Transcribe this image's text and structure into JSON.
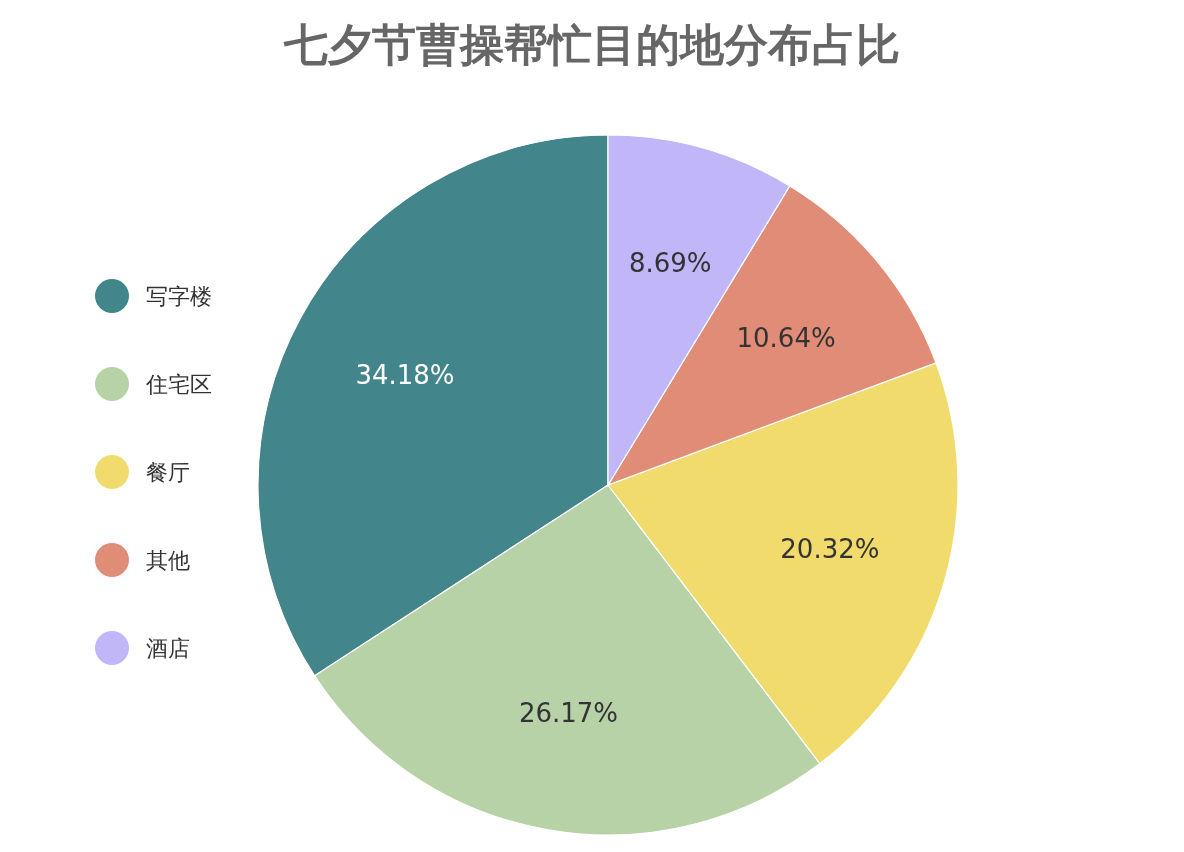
{
  "chart_data": {
    "type": "pie",
    "title": "七夕节曹操帮忙目的地分布占比",
    "categories": [
      "写字楼",
      "住宅区",
      "餐厅",
      "其他",
      "酒店"
    ],
    "values": [
      34.18,
      26.17,
      20.32,
      10.64,
      8.69
    ],
    "colors": [
      "#42858a",
      "#b8d2a7",
      "#f1db6d",
      "#e18c77",
      "#c1b6f8"
    ],
    "value_labels": [
      "34.18%",
      "26.17%",
      "20.32%",
      "10.64%",
      "8.69%"
    ],
    "legend": "left"
  }
}
